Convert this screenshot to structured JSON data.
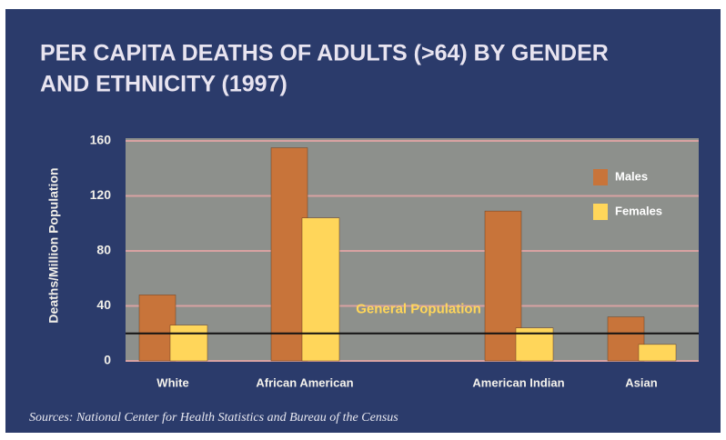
{
  "chart_data": {
    "type": "bar",
    "title": [
      "PER CAPITA DEATHS OF ADULTS (>64) BY GENDER",
      "AND ETHNICITY (1997)"
    ],
    "y_label": "Deaths/Million Population",
    "categories": [
      "White",
      "African American",
      "American Indian",
      "Asian"
    ],
    "series": [
      {
        "name": "Males",
        "color": "#c8743a",
        "values": [
          48,
          155,
          109,
          32
        ]
      },
      {
        "name": "Females",
        "color": "#ffd65a",
        "values": [
          26,
          104,
          24,
          12
        ]
      }
    ],
    "reference_line": {
      "value": 20,
      "label": "General Population"
    },
    "ylim": [
      0,
      160
    ],
    "yticks": [
      0,
      40,
      80,
      120,
      160
    ],
    "grid": true,
    "legend": "top-right",
    "source": "Sources: National Center for Health Statistics and Bureau of the Census"
  }
}
